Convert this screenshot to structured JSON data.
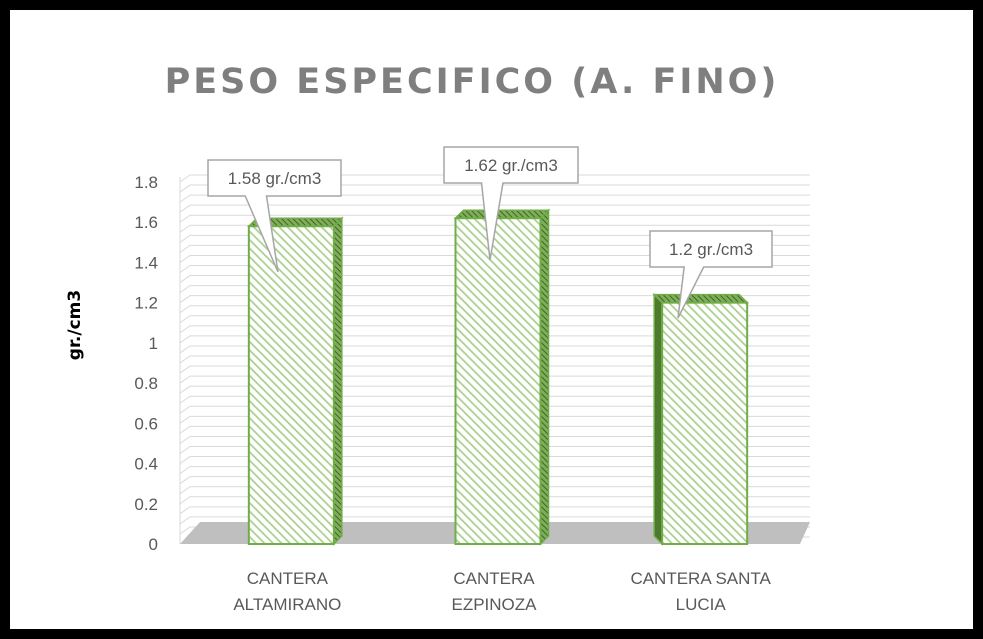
{
  "chart_data": {
    "type": "bar",
    "title": "PESO ESPECIFICO  (A. FINO)",
    "xlabel": "",
    "ylabel": "gr./cm3",
    "categories": [
      "CANTERA ALTAMIRANO",
      "CANTERA EZPINOZA",
      "CANTERA SANTA LUCIA"
    ],
    "category_lines": [
      [
        "CANTERA",
        "ALTAMIRANO"
      ],
      [
        "CANTERA",
        "EZPINOZA"
      ],
      [
        "CANTERA SANTA",
        "LUCIA"
      ]
    ],
    "values": [
      1.58,
      1.62,
      1.2
    ],
    "data_labels": [
      "1.58 gr./cm3",
      "1.62 gr./cm3",
      "1.2 gr./cm3"
    ],
    "yticks": [
      "0",
      "0.2",
      "0.4",
      "0.6",
      "0.8",
      "1",
      "1.2",
      "1.4",
      "1.6",
      "1.8"
    ],
    "ylim": [
      0,
      1.8
    ],
    "grid": true,
    "legend": "none",
    "colors": {
      "bar_fill": "#ffffff",
      "bar_hatch": "#a9d08e",
      "bar_edge": "#70ad47",
      "bar_side": "#4e7a2e",
      "title": "#7f7f7f",
      "grid": "#d9d9d9",
      "floor": "#bfbfbf",
      "text": "#595959"
    }
  }
}
